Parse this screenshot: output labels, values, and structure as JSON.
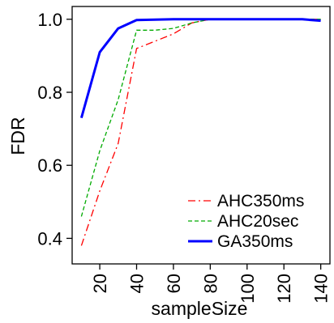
{
  "chart_data": {
    "type": "line",
    "xlabel": "sampleSize",
    "ylabel": "FDR",
    "xlim": [
      5,
      145
    ],
    "ylim": [
      0.33,
      1.035
    ],
    "xticks": [
      20,
      40,
      60,
      80,
      100,
      120,
      140
    ],
    "yticks": [
      0.4,
      0.6,
      0.8,
      1.0
    ],
    "ytick_labels": [
      "0.4",
      "0.6",
      "0.8",
      "1.0"
    ],
    "grid": false,
    "legend_position": "bottom-right",
    "series": [
      {
        "name": "AHC350ms",
        "color": "#ff0000",
        "dash": "dashdot",
        "x": [
          10,
          20,
          30,
          40,
          50,
          60,
          70,
          80,
          90,
          100,
          110,
          120,
          130,
          140
        ],
        "y": [
          0.38,
          0.53,
          0.66,
          0.92,
          0.94,
          0.96,
          0.99,
          1.0,
          1.0,
          1.0,
          1.0,
          1.0,
          1.0,
          1.0
        ]
      },
      {
        "name": "AHC20sec",
        "color": "#00aa00",
        "dash": "dashed",
        "x": [
          10,
          20,
          30,
          40,
          50,
          60,
          70,
          80,
          90,
          100,
          110,
          120,
          130,
          140
        ],
        "y": [
          0.46,
          0.64,
          0.78,
          0.97,
          0.97,
          0.975,
          0.99,
          1.0,
          1.0,
          1.0,
          1.0,
          1.0,
          1.0,
          1.0
        ]
      },
      {
        "name": "GA350ms",
        "color": "#0000ff",
        "dash": "solid",
        "x": [
          10,
          20,
          30,
          40,
          50,
          60,
          70,
          80,
          90,
          100,
          110,
          120,
          130,
          140
        ],
        "y": [
          0.73,
          0.91,
          0.975,
          0.998,
          0.999,
          1.0,
          1.0,
          1.0,
          1.0,
          1.0,
          1.0,
          1.0,
          1.0,
          0.996
        ]
      }
    ]
  }
}
